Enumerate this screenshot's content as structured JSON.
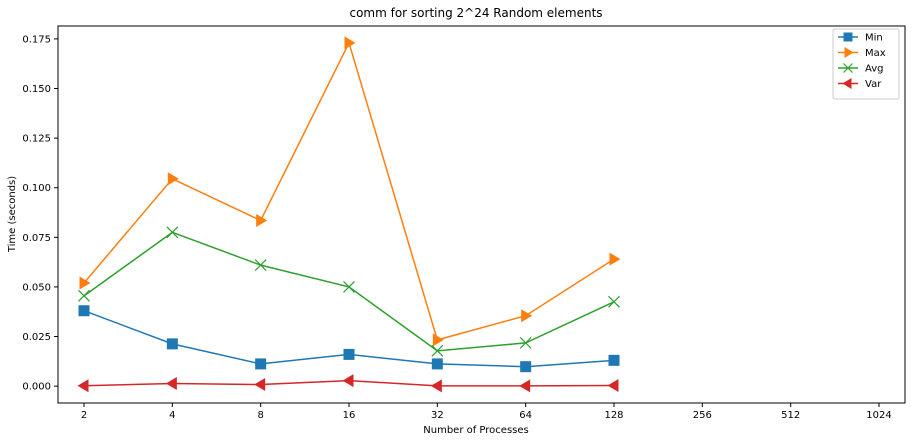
{
  "chart_data": {
    "type": "line",
    "title": "comm for sorting 2^24 Random elements",
    "xlabel": "Number of Processes",
    "ylabel": "Time (seconds)",
    "x_scale": "log2",
    "x_ticks": [
      2,
      4,
      8,
      16,
      32,
      64,
      128,
      256,
      512,
      1024
    ],
    "x_tick_labels": [
      "2",
      "4",
      "8",
      "16",
      "32",
      "64",
      "128",
      "256",
      "512",
      "1024"
    ],
    "y_ticks": [
      0.0,
      0.025,
      0.05,
      0.075,
      0.1,
      0.125,
      0.15,
      0.175
    ],
    "y_tick_labels": [
      "0.000",
      "0.025",
      "0.050",
      "0.075",
      "0.100",
      "0.125",
      "0.150",
      "0.175"
    ],
    "ylim": [
      -0.0085,
      0.1815
    ],
    "grid": false,
    "legend_position": "top-right",
    "x": [
      2,
      4,
      8,
      16,
      32,
      64,
      128
    ],
    "series": [
      {
        "name": "Min",
        "color": "#1f77b4",
        "marker": "square",
        "values": [
          0.038,
          0.0213,
          0.0112,
          0.016,
          0.0112,
          0.0098,
          0.013
        ]
      },
      {
        "name": "Max",
        "color": "#ff7f0e",
        "marker": "triangle-right",
        "values": [
          0.052,
          0.1045,
          0.0835,
          0.173,
          0.0233,
          0.0355,
          0.064
        ]
      },
      {
        "name": "Avg",
        "color": "#2ca02c",
        "marker": "x",
        "values": [
          0.0455,
          0.0775,
          0.061,
          0.05,
          0.0178,
          0.0218,
          0.0425
        ]
      },
      {
        "name": "Var",
        "color": "#d62728",
        "marker": "triangle-left",
        "values": [
          0.0002,
          0.0013,
          0.0008,
          0.0028,
          0.0001,
          0.0001,
          0.0003
        ]
      }
    ]
  }
}
